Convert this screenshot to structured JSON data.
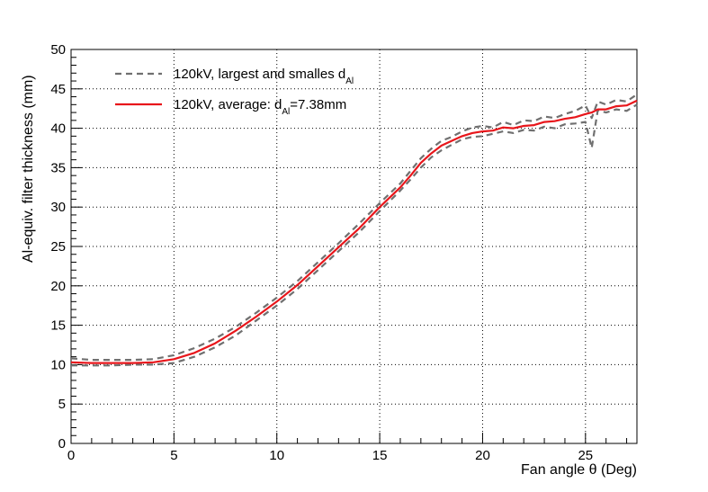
{
  "chart_data": {
    "type": "line",
    "xlabel": "Fan angle θ (Deg)",
    "ylabel": "Al-equiv. filter thickness (mm)",
    "xlim": [
      0,
      27.5
    ],
    "ylim": [
      0,
      50
    ],
    "xticks": [
      0,
      5,
      10,
      15,
      20,
      25
    ],
    "yticks": [
      0,
      5,
      10,
      15,
      20,
      25,
      30,
      35,
      40,
      45,
      50
    ],
    "grid": true,
    "legend_position": "top-left",
    "series": [
      {
        "id": "largest",
        "legend": false,
        "color": "#707070",
        "style": "dashed",
        "x": [
          0,
          1,
          2,
          3,
          4,
          5,
          6,
          7,
          8,
          9,
          10,
          11,
          12,
          13,
          14,
          15,
          16,
          16.5,
          17,
          17.5,
          18,
          18.5,
          19,
          19.5,
          20,
          20.5,
          21,
          21.5,
          22,
          22.5,
          23,
          23.5,
          24,
          24.5,
          25,
          25.3,
          25.6,
          26,
          26.5,
          27,
          27.5
        ],
        "y": [
          10.8,
          10.6,
          10.6,
          10.6,
          10.7,
          11.2,
          12.1,
          13.3,
          14.8,
          16.6,
          18.5,
          20.6,
          23.0,
          25.4,
          27.9,
          30.5,
          33.0,
          34.6,
          36.2,
          37.4,
          38.4,
          38.9,
          39.6,
          40.1,
          40.3,
          40.1,
          40.8,
          40.4,
          41.0,
          40.9,
          41.5,
          41.3,
          41.8,
          42.2,
          42.9,
          41.3,
          43.4,
          43.0,
          43.6,
          43.4,
          44.3
        ]
      },
      {
        "id": "smallest",
        "legend": true,
        "name": "120kV, largest and smalles d",
        "name_sub": "Al",
        "color": "#707070",
        "style": "dashed",
        "x": [
          0,
          1,
          2,
          3,
          4,
          5,
          6,
          7,
          8,
          9,
          10,
          11,
          12,
          13,
          14,
          15,
          16,
          16.5,
          17,
          17.5,
          18,
          18.5,
          19,
          19.5,
          20,
          20.5,
          21,
          21.5,
          22,
          22.5,
          23,
          23.5,
          24,
          24.5,
          25,
          25.3,
          25.6,
          26,
          26.5,
          27,
          27.5
        ],
        "y": [
          9.9,
          9.9,
          9.9,
          10.0,
          10.0,
          10.2,
          11.0,
          12.2,
          13.7,
          15.6,
          17.5,
          19.6,
          22.0,
          24.4,
          26.8,
          29.5,
          32.1,
          33.5,
          35.0,
          36.3,
          37.2,
          37.9,
          38.6,
          38.9,
          39.0,
          39.3,
          39.6,
          39.4,
          39.8,
          39.7,
          40.2,
          40.0,
          40.5,
          40.6,
          40.8,
          37.5,
          42.3,
          42.0,
          42.4,
          42.2,
          43.0
        ]
      },
      {
        "id": "average",
        "legend": true,
        "name": "120kV, average: d",
        "name_sub": "Al",
        "name_suffix": "=7.38mm",
        "color": "#e8161b",
        "style": "solid",
        "x": [
          0,
          1,
          2,
          3,
          4,
          5,
          6,
          7,
          8,
          9,
          10,
          11,
          12,
          13,
          14,
          15,
          16,
          16.5,
          17,
          17.5,
          18,
          18.5,
          19,
          19.5,
          20,
          20.5,
          21,
          21.5,
          22,
          22.5,
          23,
          23.5,
          24,
          24.5,
          25,
          25.3,
          25.6,
          26,
          26.5,
          27,
          27.5
        ],
        "y": [
          10.3,
          10.2,
          10.2,
          10.2,
          10.3,
          10.7,
          11.5,
          12.7,
          14.3,
          16.1,
          18.0,
          20.1,
          22.5,
          24.9,
          27.3,
          30.0,
          32.5,
          34.0,
          35.6,
          36.8,
          37.8,
          38.4,
          39.0,
          39.4,
          39.6,
          39.7,
          40.1,
          40.0,
          40.3,
          40.4,
          40.8,
          40.9,
          41.2,
          41.4,
          41.8,
          42.0,
          42.4,
          42.4,
          42.8,
          42.9,
          43.5
        ]
      }
    ]
  }
}
